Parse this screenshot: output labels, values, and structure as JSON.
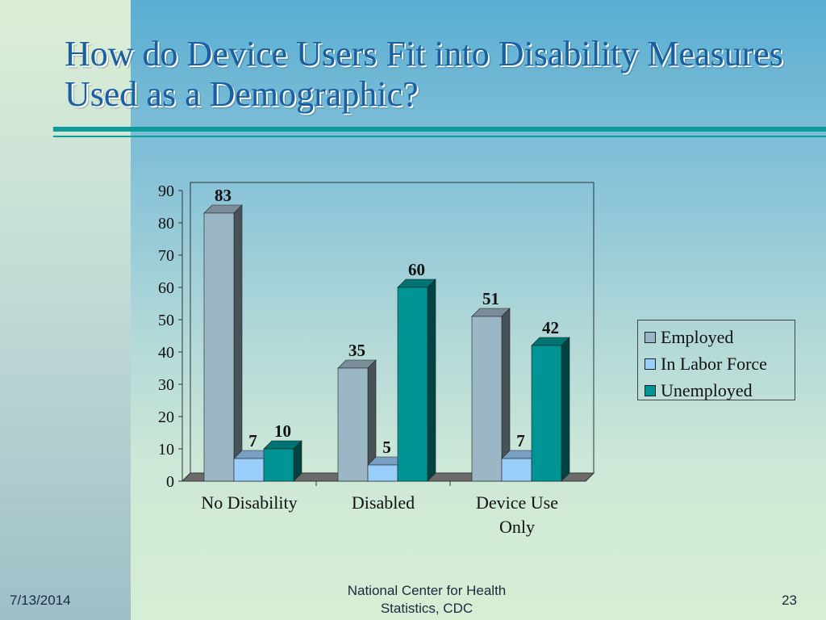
{
  "slide": {
    "title": "How do Device Users Fit into Disability Measures Used as a Demographic?",
    "footer_date": "7/13/2014",
    "footer_org": "National Center for Health Statistics, CDC",
    "footer_page": "23"
  },
  "chart_data": {
    "type": "bar",
    "categories": [
      "No Disability",
      "Disabled",
      "Device Use Only"
    ],
    "series": [
      {
        "name": "Employed",
        "values": [
          83,
          35,
          51
        ],
        "color": "#9bb6c4"
      },
      {
        "name": "In Labor Force",
        "values": [
          7,
          5,
          7
        ],
        "color": "#99cdfa"
      },
      {
        "name": "Unemployed",
        "values": [
          10,
          60,
          42
        ],
        "color": "#009494"
      }
    ],
    "y_ticks": [
      "0",
      "10",
      "20",
      "30",
      "40",
      "50",
      "60",
      "70",
      "80",
      "90"
    ],
    "ylim": [
      0,
      90
    ],
    "legend_position": "right",
    "grid": false,
    "title": "",
    "xlabel": "",
    "ylabel": ""
  }
}
